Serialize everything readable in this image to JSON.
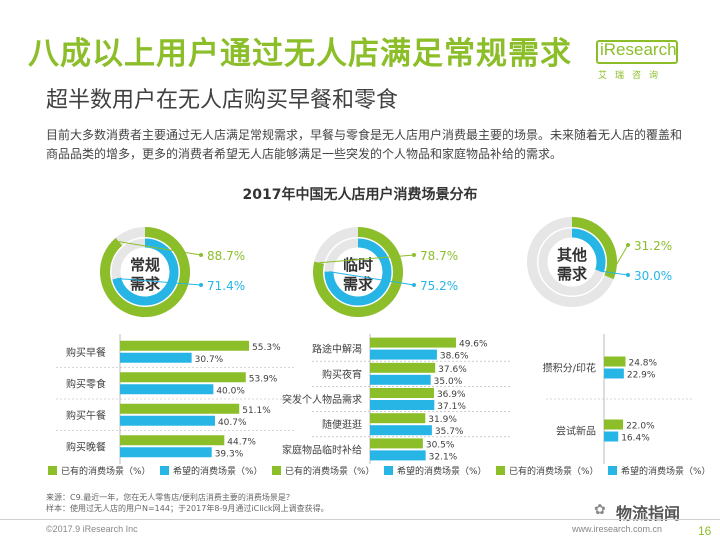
{
  "header": {
    "title": "八成以上用户通过无人店满足常规需求",
    "subtitle": "超半数用户在无人店购买早餐和零食",
    "description": "目前大多数消费者主要通过无人店满足常规需求，早餐与零食是无人店用户消费最主要的场景。未来随着无人店的覆盖和商品品类的增多，更多的消费者希望无人店能够满足一些突发的个人物品和家庭物品补给的需求。"
  },
  "logo": {
    "name": "iResearch",
    "sub": "艾瑞咨询"
  },
  "colors": {
    "green": "#8cbe2a",
    "blue": "#27b5e6",
    "text": "#404040",
    "separator": "#b0b0b0"
  },
  "chart_data": {
    "type": "bar",
    "title": "2017年中国无人店用户消费场景分布",
    "groups": [
      {
        "name": "常规需求",
        "existing_pct": 88.7,
        "desired_pct": 71.4,
        "existing_label": "88.7%",
        "desired_label": "71.4%",
        "categories": [
          "购买早餐",
          "购买零食",
          "购买午餐",
          "购买晚餐"
        ],
        "series": [
          {
            "name": "已有的消费场景（%）",
            "values": [
              55.3,
              53.9,
              51.1,
              44.7
            ],
            "labels": [
              "55.3%",
              "53.9%",
              "51.1%",
              "44.7%"
            ]
          },
          {
            "name": "希望的消费场景（%）",
            "values": [
              30.7,
              40.0,
              40.7,
              39.3
            ],
            "labels": [
              "30.7%",
              "40.0%",
              "40.7%",
              "39.3%"
            ]
          }
        ]
      },
      {
        "name": "临时需求",
        "existing_pct": 78.7,
        "desired_pct": 75.2,
        "existing_label": "78.7%",
        "desired_label": "75.2%",
        "categories": [
          "路途中解渴",
          "购买夜宵",
          "突发个人物品需求",
          "随便逛逛",
          "家庭物品临时补给"
        ],
        "series": [
          {
            "name": "已有的消费场景（%）",
            "values": [
              49.6,
              37.6,
              36.9,
              31.9,
              30.5
            ],
            "labels": [
              "49.6%",
              "37.6%",
              "36.9%",
              "31.9%",
              "30.5%"
            ]
          },
          {
            "name": "希望的消费场景（%）",
            "values": [
              38.6,
              35.0,
              37.1,
              35.7,
              32.1
            ],
            "labels": [
              "38.6%",
              "35.0%",
              "37.1%",
              "35.7%",
              "32.1%"
            ]
          }
        ]
      },
      {
        "name": "其他需求",
        "existing_pct": 31.2,
        "desired_pct": 30.0,
        "existing_label": "31.2%",
        "desired_label": "30.0%",
        "categories": [
          "攒积分/印花",
          "尝试新品"
        ],
        "series": [
          {
            "name": "已有的消费场景（%）",
            "values": [
              24.8,
              22.0
            ],
            "labels": [
              "24.8%",
              "22.0%"
            ]
          },
          {
            "name": "希望的消费场景（%）",
            "values": [
              22.9,
              16.4
            ],
            "labels": [
              "22.9%",
              "16.4%"
            ]
          }
        ]
      }
    ],
    "legend": [
      "已有的消费场景（%）",
      "希望的消费场景（%）"
    ]
  },
  "footer": {
    "source_line1": "来源：C9.最近一年，您在无人零售店/便利店消费主要的消费场景是？",
    "source_line2": "样本：使用过无人店的用户N=144；于2017年8-9月通过iClick网上调查获得。",
    "copyright": "©2017.9 iResearch Inc",
    "website": "www.iresearch.com.cn",
    "page": "16",
    "watermark": "物流指闻"
  }
}
